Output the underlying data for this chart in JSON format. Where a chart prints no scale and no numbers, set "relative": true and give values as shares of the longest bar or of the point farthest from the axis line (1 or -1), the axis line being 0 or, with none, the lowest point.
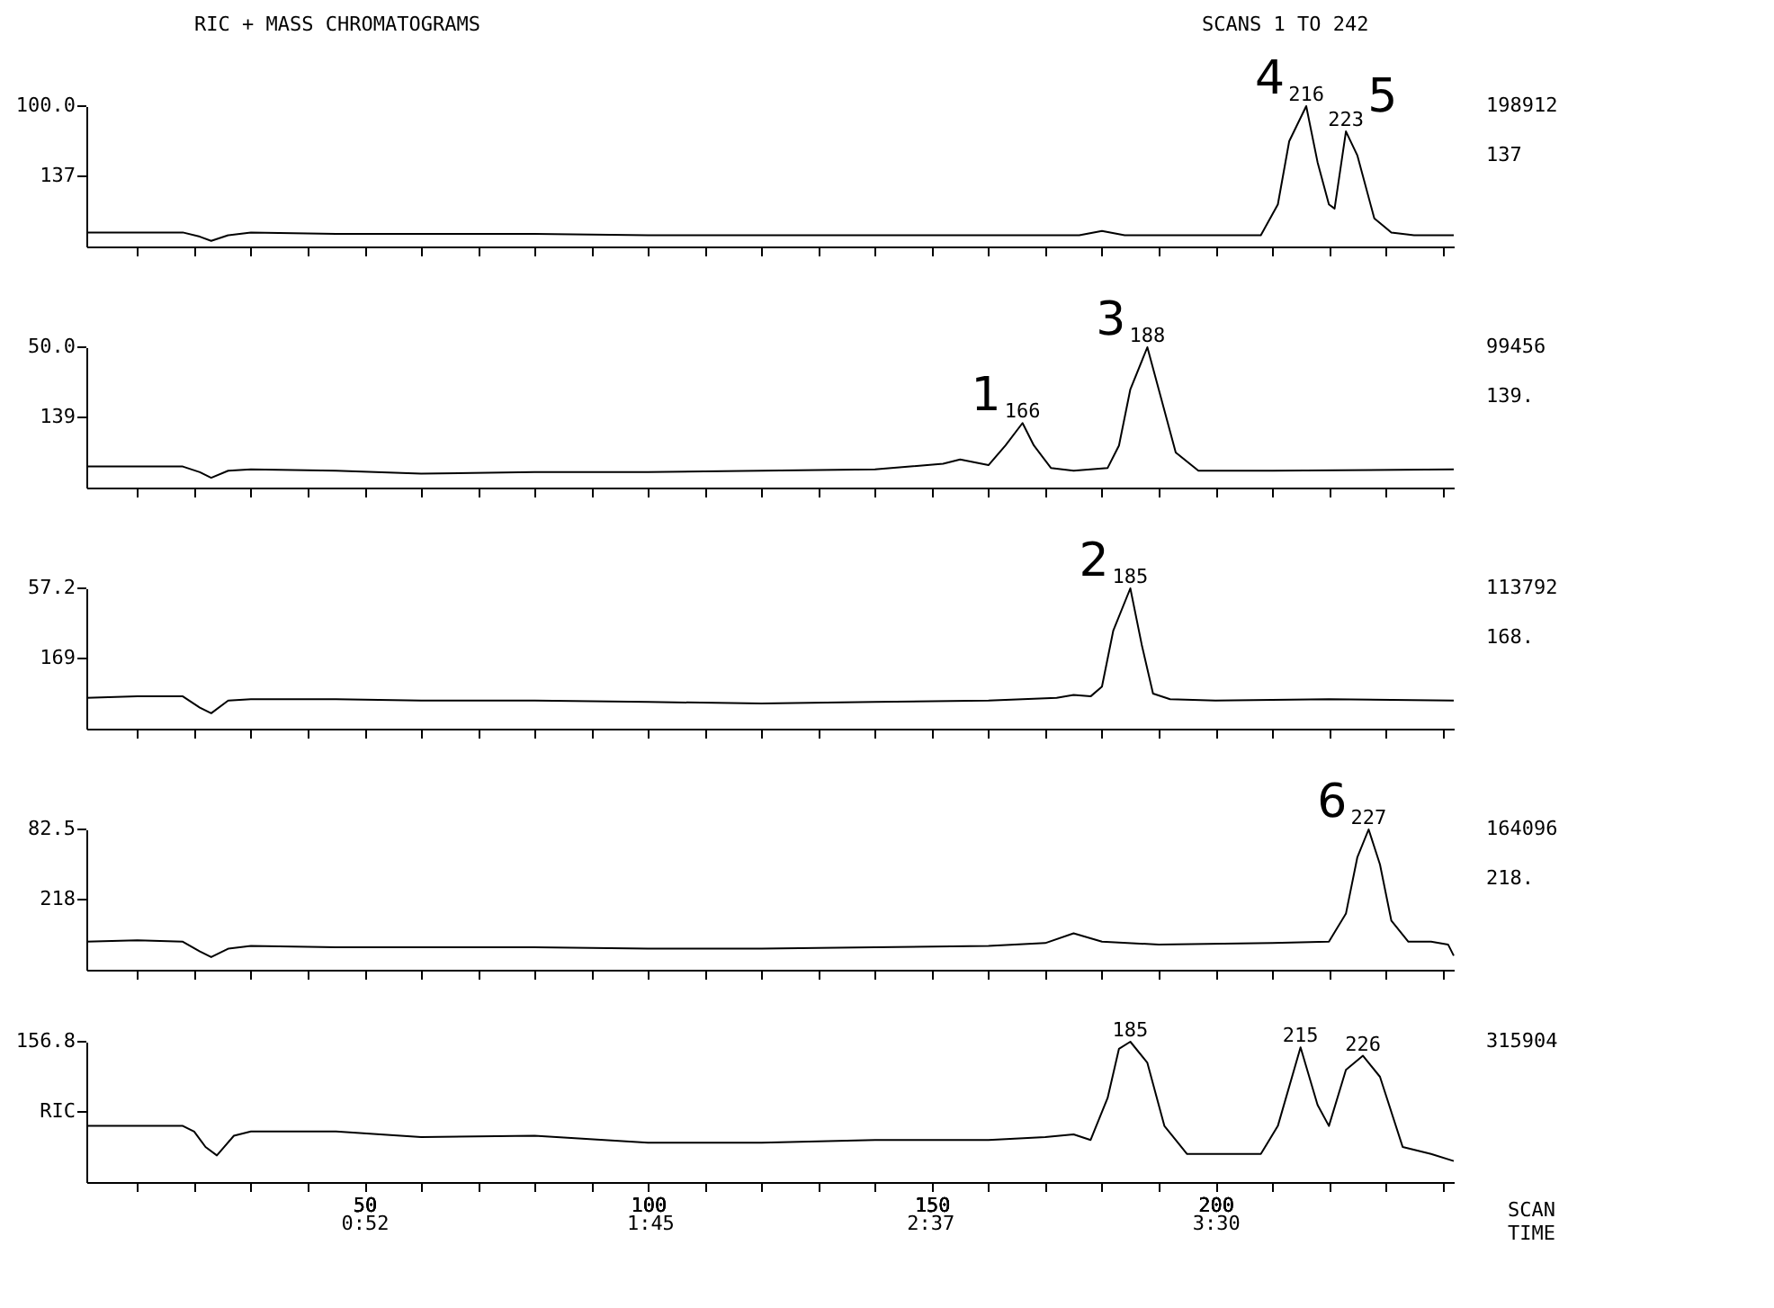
{
  "chart_data": [
    {
      "type": "line",
      "title": "RIC + MASS CHROMATOGRAMS",
      "subtitle": "SCANS    1 TO  242",
      "relative": true,
      "tick_labels": false,
      "grid": false,
      "xlim": [
        1,
        242
      ],
      "xticks": [
        10,
        20,
        30,
        40,
        50,
        60,
        70,
        80,
        90,
        100,
        110,
        120,
        130,
        140,
        150,
        160,
        170,
        180,
        190,
        200,
        210,
        220,
        230,
        240
      ],
      "x": [
        1,
        10,
        18,
        21,
        23,
        26,
        30,
        45,
        60,
        80,
        100,
        120,
        140,
        160,
        176,
        180,
        184,
        200,
        208,
        211,
        213,
        216,
        218,
        220,
        221,
        223,
        225,
        228,
        231,
        235,
        242
      ],
      "series": [
        {
          "color": "#000000",
          "values": [
            0.1,
            0.1,
            0.1,
            0.07,
            0.04,
            0.08,
            0.1,
            0.09,
            0.09,
            0.09,
            0.08,
            0.08,
            0.08,
            0.08,
            0.08,
            0.11,
            0.08,
            0.08,
            0.08,
            0.3,
            0.75,
            1.0,
            0.6,
            0.3,
            0.27,
            0.82,
            0.65,
            0.2,
            0.1,
            0.08,
            0.08
          ]
        }
      ],
      "annotations": [
        "100.0",
        "137",
        "198912",
        "137",
        {
          "text": "216",
          "x": 216,
          "y": 1.0
        },
        {
          "text": "223",
          "x": 223,
          "y": 0.82
        },
        {
          "text": "4",
          "x": 216,
          "y": 1.0
        },
        {
          "text": "5",
          "x": 223,
          "y": 0.82
        }
      ]
    },
    {
      "type": "line",
      "relative": true,
      "tick_labels": false,
      "grid": false,
      "xlim": [
        1,
        242
      ],
      "xticks": [
        10,
        20,
        30,
        40,
        50,
        60,
        70,
        80,
        90,
        100,
        110,
        120,
        130,
        140,
        150,
        160,
        170,
        180,
        190,
        200,
        210,
        220,
        230,
        240
      ],
      "x": [
        1,
        10,
        18,
        21,
        23,
        26,
        30,
        45,
        60,
        80,
        100,
        120,
        140,
        152,
        155,
        160,
        163,
        166,
        168,
        171,
        175,
        181,
        183,
        185,
        188,
        190,
        193,
        197,
        210,
        242
      ],
      "series": [
        {
          "color": "#000000",
          "values": [
            0.15,
            0.15,
            0.15,
            0.11,
            0.07,
            0.12,
            0.13,
            0.12,
            0.1,
            0.11,
            0.11,
            0.12,
            0.13,
            0.17,
            0.2,
            0.16,
            0.3,
            0.46,
            0.3,
            0.14,
            0.12,
            0.14,
            0.3,
            0.7,
            1.0,
            0.7,
            0.25,
            0.12,
            0.12,
            0.13
          ]
        }
      ],
      "annotations": [
        "50.0",
        "139",
        "99456",
        "139.",
        {
          "text": "188",
          "x": 188,
          "y": 1.0
        },
        {
          "text": "166",
          "x": 166,
          "y": 0.46
        },
        {
          "text": "1",
          "x": 166,
          "y": 0.46
        },
        {
          "text": "3",
          "x": 188,
          "y": 1.0
        }
      ]
    },
    {
      "type": "line",
      "relative": true,
      "tick_labels": false,
      "grid": false,
      "xlim": [
        1,
        242
      ],
      "xticks": [
        10,
        20,
        30,
        40,
        50,
        60,
        70,
        80,
        90,
        100,
        110,
        120,
        130,
        140,
        150,
        160,
        170,
        180,
        190,
        200,
        210,
        220,
        230,
        240
      ],
      "x": [
        1,
        10,
        18,
        21,
        23,
        26,
        30,
        45,
        60,
        80,
        100,
        120,
        140,
        160,
        172,
        175,
        178,
        180,
        182,
        185,
        187,
        189,
        192,
        200,
        220,
        242
      ],
      "series": [
        {
          "color": "#000000",
          "values": [
            0.22,
            0.23,
            0.23,
            0.15,
            0.11,
            0.2,
            0.21,
            0.21,
            0.2,
            0.2,
            0.19,
            0.18,
            0.19,
            0.2,
            0.22,
            0.24,
            0.23,
            0.3,
            0.7,
            1.0,
            0.6,
            0.25,
            0.21,
            0.2,
            0.21,
            0.2
          ]
        }
      ],
      "annotations": [
        "57.2",
        "169",
        "113792",
        "168.",
        {
          "text": "185",
          "x": 185,
          "y": 1.0
        },
        {
          "text": "2",
          "x": 185,
          "y": 1.0
        }
      ]
    },
    {
      "type": "line",
      "relative": true,
      "tick_labels": false,
      "grid": false,
      "xlim": [
        1,
        242
      ],
      "xticks": [
        10,
        20,
        30,
        40,
        50,
        60,
        70,
        80,
        90,
        100,
        110,
        120,
        130,
        140,
        150,
        160,
        170,
        180,
        190,
        200,
        210,
        220,
        230,
        240
      ],
      "x": [
        1,
        10,
        18,
        21,
        23,
        26,
        30,
        45,
        60,
        80,
        100,
        120,
        140,
        160,
        170,
        175,
        180,
        190,
        210,
        220,
        223,
        225,
        227,
        229,
        231,
        234,
        238,
        241,
        242
      ],
      "series": [
        {
          "color": "#000000",
          "values": [
            0.2,
            0.21,
            0.2,
            0.13,
            0.09,
            0.15,
            0.17,
            0.16,
            0.16,
            0.16,
            0.15,
            0.15,
            0.16,
            0.17,
            0.19,
            0.26,
            0.2,
            0.18,
            0.19,
            0.2,
            0.4,
            0.8,
            1.0,
            0.75,
            0.35,
            0.2,
            0.2,
            0.18,
            0.1
          ]
        }
      ],
      "annotations": [
        "82.5",
        "218",
        "164096",
        "218.",
        {
          "text": "227",
          "x": 227,
          "y": 1.0
        },
        {
          "text": "6",
          "x": 227,
          "y": 1.0
        }
      ]
    },
    {
      "type": "line",
      "relative": true,
      "tick_labels": "x",
      "grid": false,
      "xlabel": "SCAN TIME",
      "xlim": [
        1,
        242
      ],
      "xticks": [
        {
          "value": 10,
          "label": null
        },
        {
          "value": 20,
          "label": null
        },
        {
          "value": 30,
          "label": null
        },
        {
          "value": 40,
          "label": null
        },
        50,
        {
          "value": 60,
          "label": null
        },
        {
          "value": 70,
          "label": null
        },
        {
          "value": 80,
          "label": null
        },
        {
          "value": 90,
          "label": null
        },
        100,
        {
          "value": 110,
          "label": null
        },
        {
          "value": 120,
          "label": null
        },
        {
          "value": 130,
          "label": null
        },
        {
          "value": 140,
          "label": null
        },
        150,
        {
          "value": 160,
          "label": null
        },
        {
          "value": 170,
          "label": null
        },
        {
          "value": 180,
          "label": null
        },
        {
          "value": 190,
          "label": null
        },
        200,
        {
          "value": 210,
          "label": null
        },
        {
          "value": 220,
          "label": null
        },
        {
          "value": 230,
          "label": null
        },
        {
          "value": 240,
          "label": null
        }
      ],
      "x2lim": [
        0.0067,
        4.237
      ],
      "x2ticks": [
        {
          "value": 0.8667,
          "label": "0:52"
        },
        {
          "value": 1.75,
          "label": "1:45"
        },
        {
          "value": 2.6167,
          "label": "2:37"
        },
        {
          "value": 3.5,
          "label": "3:30"
        }
      ],
      "x": [
        1,
        10,
        18,
        20,
        22,
        24,
        27,
        30,
        45,
        60,
        80,
        100,
        120,
        140,
        160,
        170,
        175,
        178,
        181,
        183,
        185,
        188,
        191,
        195,
        200,
        208,
        211,
        215,
        218,
        220,
        223,
        226,
        229,
        233,
        238,
        242
      ],
      "series": [
        {
          "color": "#000000",
          "values": [
            0.4,
            0.4,
            0.4,
            0.36,
            0.25,
            0.19,
            0.33,
            0.36,
            0.36,
            0.32,
            0.33,
            0.28,
            0.28,
            0.3,
            0.3,
            0.32,
            0.34,
            0.3,
            0.6,
            0.95,
            1.0,
            0.85,
            0.4,
            0.2,
            0.2,
            0.2,
            0.4,
            0.96,
            0.55,
            0.4,
            0.8,
            0.9,
            0.75,
            0.25,
            0.2,
            0.15
          ]
        }
      ],
      "annotations": [
        "156.8",
        "RIC",
        "315904",
        {
          "text": "185",
          "x": 185,
          "y": 1.0
        },
        {
          "text": "215",
          "x": 215,
          "y": 0.96
        },
        {
          "text": "226",
          "x": 226,
          "y": 0.9
        }
      ]
    }
  ]
}
